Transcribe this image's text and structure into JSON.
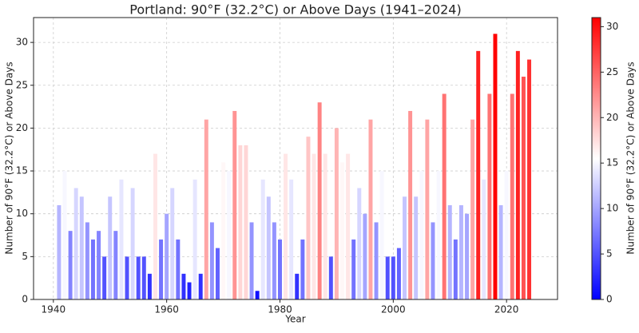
{
  "chart_data": {
    "type": "bar",
    "title": "Portland: 90°F (32.2°C) or Above Days (1941–2024)",
    "xlabel": "Year",
    "ylabel": "Number of 90°F (32.2°C) or Above Days",
    "x": [
      1941,
      1942,
      1943,
      1944,
      1945,
      1946,
      1947,
      1948,
      1949,
      1950,
      1951,
      1952,
      1953,
      1954,
      1955,
      1956,
      1957,
      1958,
      1959,
      1960,
      1961,
      1962,
      1963,
      1964,
      1965,
      1966,
      1967,
      1968,
      1969,
      1970,
      1971,
      1972,
      1973,
      1974,
      1975,
      1976,
      1977,
      1978,
      1979,
      1980,
      1981,
      1982,
      1983,
      1984,
      1985,
      1986,
      1987,
      1988,
      1989,
      1990,
      1991,
      1992,
      1993,
      1994,
      1995,
      1996,
      1997,
      1998,
      1999,
      2000,
      2001,
      2002,
      2003,
      2004,
      2005,
      2006,
      2007,
      2008,
      2009,
      2010,
      2011,
      2012,
      2013,
      2014,
      2015,
      2016,
      2017,
      2018,
      2019,
      2020,
      2021,
      2022,
      2023,
      2024
    ],
    "values": [
      11,
      15,
      8,
      13,
      12,
      9,
      7,
      8,
      5,
      12,
      8,
      14,
      5,
      13,
      5,
      5,
      3,
      17,
      7,
      10,
      13,
      7,
      3,
      2,
      14,
      3,
      21,
      9,
      6,
      16,
      15,
      22,
      18,
      18,
      9,
      1,
      14,
      12,
      9,
      7,
      17,
      14,
      3,
      7,
      19,
      17,
      23,
      17,
      5,
      20,
      16,
      17,
      7,
      13,
      10,
      21,
      9,
      15,
      5,
      5,
      6,
      12,
      22,
      12,
      15,
      21,
      9,
      15,
      24,
      11,
      7,
      11,
      10,
      21,
      29,
      14,
      24,
      31,
      11,
      15,
      24,
      29,
      26,
      28
    ],
    "xlim": [
      1936.5,
      2029
    ],
    "xticks": [
      1940,
      1960,
      1980,
      2000,
      2020
    ],
    "ylim": [
      0,
      32.9
    ],
    "yticks": [
      0,
      5,
      10,
      15,
      20,
      25,
      30
    ],
    "grid": true,
    "colormap": "bwr",
    "clim": [
      0,
      31
    ],
    "colorbar_ticks": [
      0,
      5,
      10,
      15,
      20,
      25,
      30
    ],
    "colorbar_label": "Number of 90°F (32.2°C) or Above Days"
  }
}
